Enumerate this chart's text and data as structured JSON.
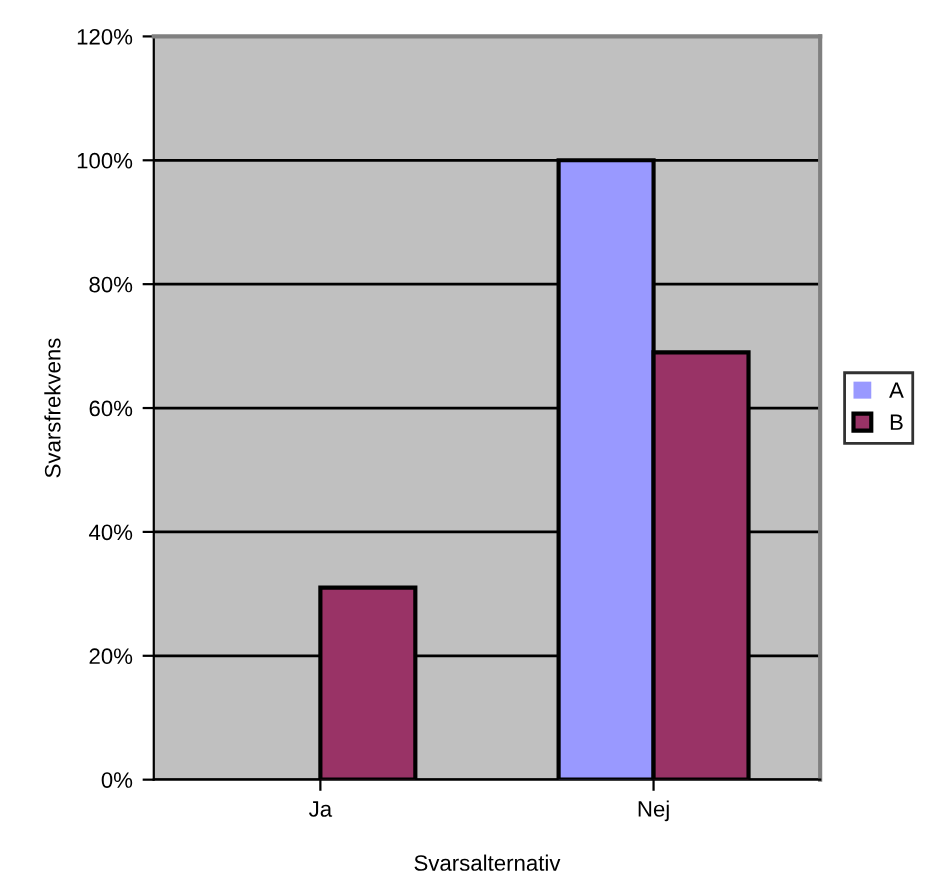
{
  "chart_data": {
    "type": "bar",
    "xlabel": "Svarsalternativ",
    "ylabel": "Svarsfrekvens",
    "categories": [
      "Ja",
      "Nej"
    ],
    "series": [
      {
        "name": "A",
        "color": "#9999ff",
        "values": [
          0,
          100
        ]
      },
      {
        "name": "B",
        "color": "#993366",
        "values": [
          31,
          69
        ]
      }
    ],
    "ylim": [
      0,
      120
    ],
    "yticks": [
      {
        "value": 0,
        "label": "0%"
      },
      {
        "value": 20,
        "label": "20%"
      },
      {
        "value": 40,
        "label": "40%"
      },
      {
        "value": 60,
        "label": "60%"
      },
      {
        "value": 80,
        "label": "80%"
      },
      {
        "value": 100,
        "label": "100%"
      },
      {
        "value": 120,
        "label": "120%"
      }
    ],
    "grid": "y",
    "legend": "right"
  }
}
